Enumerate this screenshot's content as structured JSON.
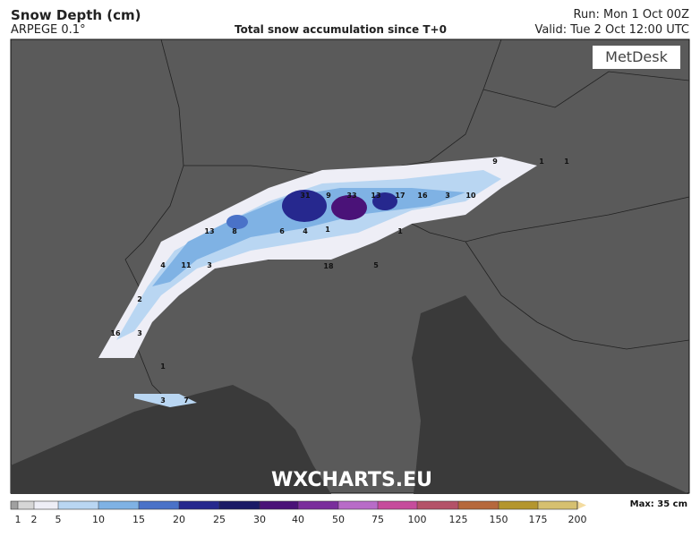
{
  "header": {
    "title": "Snow Depth (cm)",
    "model": "ARPEGE 0.1°",
    "subtitle": "Total snow accumulation since T+0",
    "run": "Run: Mon 1 Oct 00Z",
    "valid": "Valid: Tue 2 Oct 12:00 UTC"
  },
  "logo": "MetDesk",
  "watermark": "WXCHARTS.EU",
  "map_labels": [
    "31",
    "9",
    "33",
    "13",
    "17",
    "16",
    "3",
    "10",
    "9",
    "1",
    "1",
    "13",
    "8",
    "6",
    "4",
    "1",
    "1",
    "4",
    "11",
    "3",
    "18",
    "5",
    "2",
    "16",
    "3",
    "1",
    "3",
    "7"
  ],
  "legend": {
    "ticks": [
      1,
      2,
      5,
      10,
      15,
      20,
      25,
      30,
      40,
      50,
      75,
      100,
      125,
      150,
      175,
      200
    ],
    "colors": [
      "#d6d6d6",
      "#eeeef6",
      "#b9d6f2",
      "#7fb2e4",
      "#4a72c8",
      "#26288e",
      "#1a1a66",
      "#4a1278",
      "#7a2e9c",
      "#b86cc8",
      "#c64c9c",
      "#b45268",
      "#b6683c",
      "#b4962e",
      "#d6c070"
    ],
    "max": "Max: 35 cm"
  }
}
